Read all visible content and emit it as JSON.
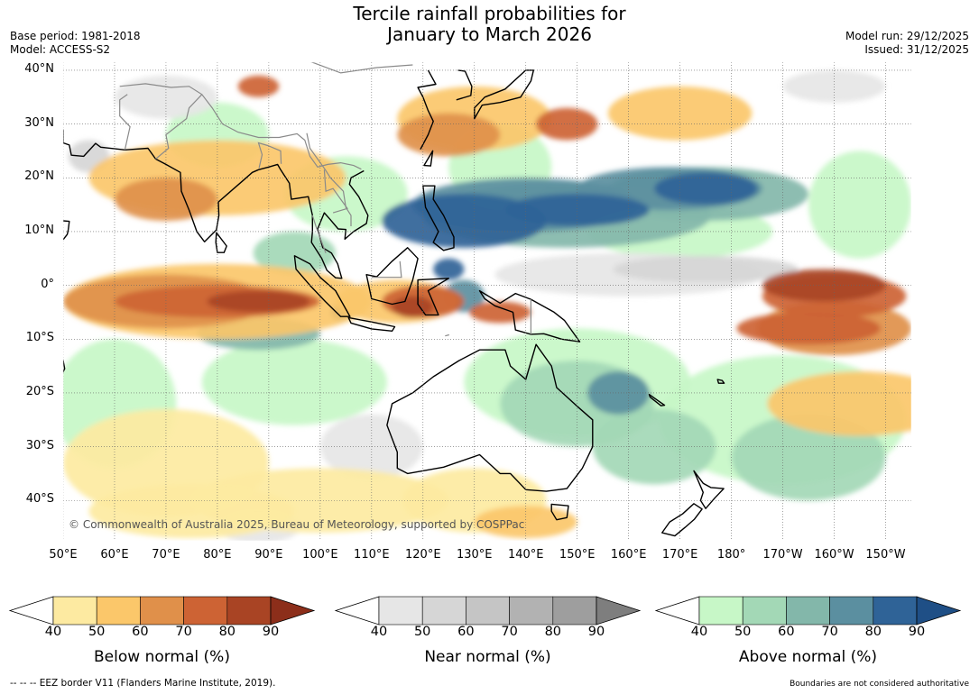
{
  "title": {
    "line1": "Tercile rainfall probabilities for",
    "line2": "January to March 2026"
  },
  "meta": {
    "base_period": "Base period: 1981-2018",
    "model": "Model: ACCESS-S2",
    "model_run": "Model run: 29/12/2025",
    "issued": "Issued: 31/12/2025"
  },
  "axes": {
    "lat_ticks": [
      "40°N",
      "30°N",
      "20°N",
      "10°N",
      "0°",
      "10°S",
      "20°S",
      "30°S",
      "40°S"
    ],
    "lon_ticks": [
      "50°E",
      "60°E",
      "70°E",
      "80°E",
      "90°E",
      "100°E",
      "110°E",
      "120°E",
      "130°E",
      "140°E",
      "150°E",
      "160°E",
      "170°E",
      "180°",
      "170°W",
      "160°W",
      "150°W"
    ]
  },
  "copyright": "© Commonwealth of Australia 2025, Bureau of Meteorology, supported by COSPPac",
  "colorbars": [
    {
      "title": "Below normal (%)",
      "ticks": [
        "40",
        "50",
        "60",
        "70",
        "80",
        "90"
      ],
      "colors": [
        "#fdeaa1",
        "#fbc76a",
        "#e0904a",
        "#cd6334",
        "#a94424"
      ],
      "low_color": "#ffffff",
      "high_color": "#8c2e1a"
    },
    {
      "title": "Near normal (%)",
      "ticks": [
        "40",
        "50",
        "60",
        "70",
        "80",
        "90"
      ],
      "colors": [
        "#e6e6e6",
        "#d6d6d6",
        "#c5c5c5",
        "#b2b2b2",
        "#9e9e9e"
      ],
      "low_color": "#ffffff",
      "high_color": "#7e7e7e"
    },
    {
      "title": "Above normal (%)",
      "ticks": [
        "40",
        "50",
        "60",
        "70",
        "80",
        "90"
      ],
      "colors": [
        "#c7f7c7",
        "#a3d8b6",
        "#83b7aa",
        "#5b8fa0",
        "#2f6397"
      ],
      "low_color": "#ffffff",
      "high_color": "#1f4f86"
    }
  ],
  "footer": {
    "eez_note": "--  --  -- EEZ border V11 (Flanders Marine Institute, 2019).",
    "boundaries_note": "Boundaries are not considered authoritative"
  }
}
